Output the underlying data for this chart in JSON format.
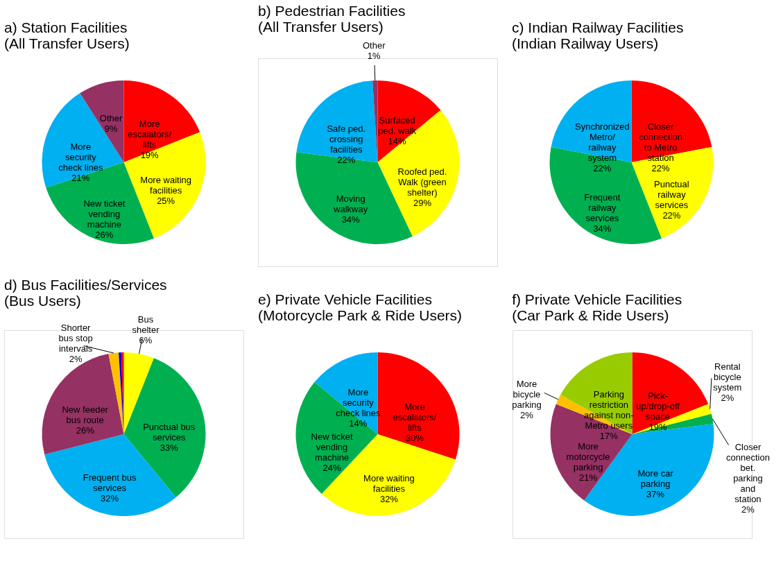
{
  "chart_data": [
    {
      "type": "pie",
      "title": "a) Station Facilities",
      "subtitle": "(All Transfer Users)",
      "categories": [
        "More escalators/ lifts",
        "More waiting facilities",
        "New ticket vending machine",
        "More security check lines",
        "Other"
      ],
      "values": [
        19,
        25,
        26,
        21,
        9
      ],
      "colors": [
        "#ff0000",
        "#ffff00",
        "#00b050",
        "#00b0f0",
        "#953163"
      ],
      "value_labels": [
        "19%",
        "25%",
        "26%",
        "21%",
        "9%"
      ]
    },
    {
      "type": "pie",
      "title": "b) Pedestrian Facilities",
      "subtitle": "(All Transfer Users)",
      "categories": [
        "Surfaced ped. walk",
        "Roofed ped. Walk (green shelter)",
        "Moving walkway",
        "Safe ped. crossing facilities",
        "Other"
      ],
      "values": [
        14,
        29,
        34,
        22,
        1
      ],
      "colors": [
        "#ff0000",
        "#ffff00",
        "#00b050",
        "#00b0f0",
        "#953163"
      ],
      "value_labels": [
        "14%",
        "29%",
        "34%",
        "22%",
        "1%"
      ]
    },
    {
      "type": "pie",
      "title": "c) Indian Railway Facilities",
      "subtitle": "(Indian Railway Users)",
      "categories": [
        "Closer connection to Metro station",
        "Punctual railway services",
        "Frequent railway services",
        "Synchronized Metro/ railway system"
      ],
      "values": [
        22,
        22,
        34,
        22
      ],
      "colors": [
        "#ff0000",
        "#ffff00",
        "#00b050",
        "#00b0f0"
      ],
      "value_labels": [
        "22%",
        "22%",
        "34%",
        "22%"
      ]
    },
    {
      "type": "pie",
      "title": "d) Bus Facilities/Services",
      "subtitle": "(Bus Users)",
      "categories": [
        "Bus shelter",
        "Punctual bus services",
        "Frequent bus services",
        "New feeder bus route",
        "Shorter bus stop intervals",
        null,
        null
      ],
      "values": [
        6,
        33,
        32,
        26,
        2,
        0.5,
        0.5
      ],
      "colors": [
        "#ffff00",
        "#00b050",
        "#00b0f0",
        "#953163",
        "#ffc000",
        "#0000ff",
        "#ff0000"
      ],
      "value_labels": [
        "6%",
        "33%",
        "32%",
        "26%",
        "2%",
        null,
        null
      ]
    },
    {
      "type": "pie",
      "title": "e) Private Vehicle Facilities",
      "subtitle": "(Motorcycle Park & Ride Users)",
      "categories": [
        "More escalators/ lifts",
        "More waiting facilities",
        "New ticket vending machine",
        "More security check lines"
      ],
      "values": [
        30,
        32,
        24,
        14
      ],
      "colors": [
        "#ff0000",
        "#ffff00",
        "#00b050",
        "#00b0f0"
      ],
      "value_labels": [
        "30%",
        "32%",
        "24%",
        "14%"
      ]
    },
    {
      "type": "pie",
      "title": "f) Private Vehicle Facilities",
      "subtitle": "(Car Park & Ride Users)",
      "categories": [
        "Pick-up/drop-off space",
        "Rental bicycle system",
        "Closer connection bet. parking and station",
        "More car parking",
        "More motorcycle parking",
        "More bicycle parking",
        "Parking restriction against non-Metro users"
      ],
      "values": [
        19,
        2,
        2,
        37,
        21,
        2,
        17
      ],
      "colors": [
        "#ff0000",
        "#ffff00",
        "#00b050",
        "#00b0f0",
        "#953163",
        "#ffc000",
        "#99cc00"
      ],
      "value_labels": [
        "19%",
        "2%",
        "2%",
        "37%",
        "21%",
        "2%",
        "17%"
      ]
    }
  ]
}
